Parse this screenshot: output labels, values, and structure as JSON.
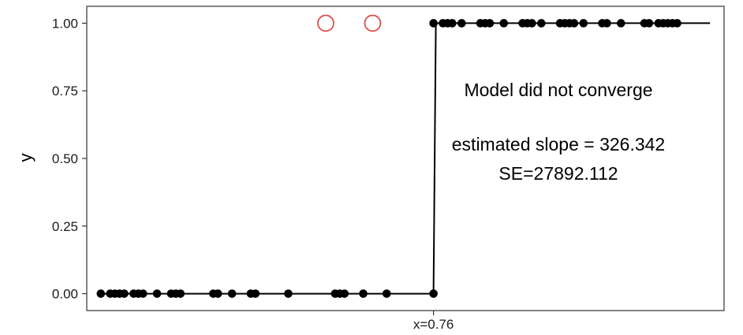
{
  "chart_data": {
    "type": "scatter",
    "title": "",
    "xlabel": "",
    "ylabel": "y",
    "xlim": [
      0.02,
      1.38
    ],
    "ylim": [
      -0.0625,
      1.0625
    ],
    "grid": false,
    "y_ticks": [
      {
        "value": 0.0,
        "label": "0.00"
      },
      {
        "value": 0.25,
        "label": "0.25"
      },
      {
        "value": 0.5,
        "label": "0.50"
      },
      {
        "value": 0.75,
        "label": "0.75"
      },
      {
        "value": 1.0,
        "label": "1.00"
      }
    ],
    "x_ticks": [
      {
        "value": 0.76,
        "label": "x=0.76"
      }
    ],
    "points": {
      "y0_x": [
        0.05,
        0.07,
        0.08,
        0.09,
        0.1,
        0.12,
        0.13,
        0.14,
        0.17,
        0.2,
        0.21,
        0.22,
        0.29,
        0.3,
        0.33,
        0.37,
        0.38,
        0.45,
        0.55,
        0.56,
        0.57,
        0.61,
        0.66,
        0.76
      ],
      "y1_x": [
        0.76,
        0.78,
        0.79,
        0.8,
        0.82,
        0.86,
        0.87,
        0.88,
        0.91,
        0.95,
        0.96,
        0.97,
        0.99,
        1.03,
        1.04,
        1.05,
        1.06,
        1.08,
        1.12,
        1.13,
        1.16,
        1.21,
        1.22,
        1.24,
        1.25,
        1.26,
        1.27,
        1.28
      ]
    },
    "highlighted_points": [
      {
        "x": 0.53,
        "y": 1.0
      },
      {
        "x": 0.63,
        "y": 1.0
      }
    ],
    "fitted_line": [
      {
        "x": 0.05,
        "y": 0.0
      },
      {
        "x": 0.76,
        "y": 0.0
      },
      {
        "x": 0.765,
        "y": 1.0
      },
      {
        "x": 1.35,
        "y": 1.0
      }
    ],
    "annotations": {
      "line1": "Model did not converge",
      "line2": "estimated slope = 326.342",
      "line3": "SE=27892.112"
    },
    "colors": {
      "points": "#000000",
      "highlight": "#d9504d",
      "line": "#000000",
      "border": "#333333"
    }
  }
}
